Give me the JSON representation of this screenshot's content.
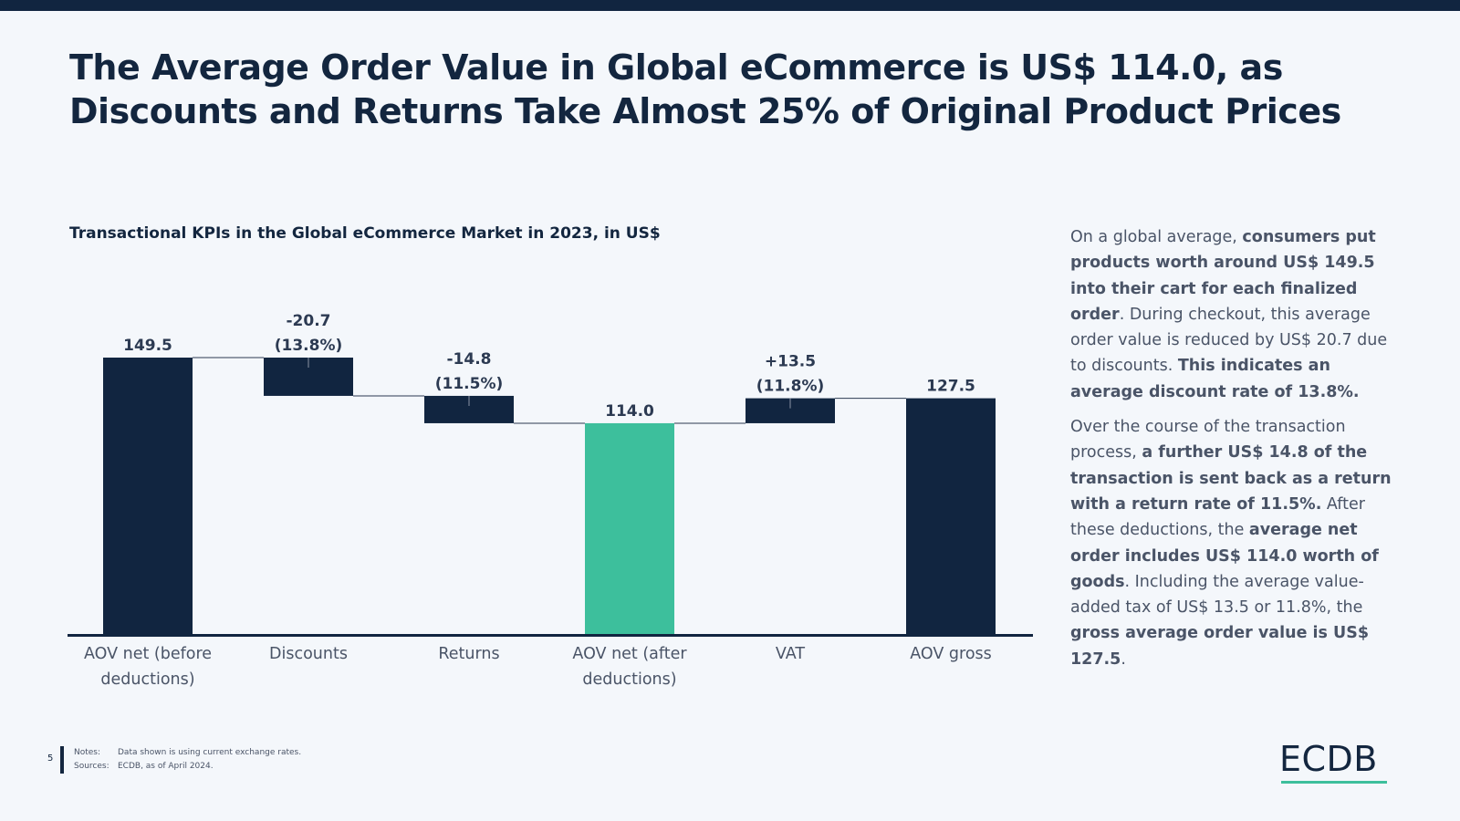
{
  "title": "The Average Order Value in Global eCommerce is US$ 114.0, as Discounts and Returns Take Almost 25% of Original Product Prices",
  "colors": {
    "dark": "#112540",
    "accent": "#3dbf9c"
  },
  "chart_data": {
    "type": "bar",
    "subtype": "waterfall",
    "title": "Transactional KPIs in the Global eCommerce Market in 2023, in US$",
    "categories": [
      [
        "AOV net (before",
        "deductions)"
      ],
      [
        "Discounts"
      ],
      [
        "Returns"
      ],
      [
        "AOV net (after",
        "deductions)"
      ],
      [
        "VAT"
      ],
      [
        "AOV gross"
      ]
    ],
    "steps": [
      {
        "kind": "total",
        "value": 149.5,
        "label": [
          "149.5"
        ]
      },
      {
        "kind": "delta",
        "value": -20.7,
        "label": [
          "-20.7",
          "(13.8%)"
        ]
      },
      {
        "kind": "delta",
        "value": -14.8,
        "label": [
          "-14.8",
          "(11.5%)"
        ]
      },
      {
        "kind": "total",
        "value": 114.0,
        "label": [
          "114.0"
        ],
        "highlight": true
      },
      {
        "kind": "delta",
        "value": 13.5,
        "label": [
          "+13.5",
          "(11.8%)"
        ]
      },
      {
        "kind": "total",
        "value": 127.5,
        "label": [
          "127.5"
        ]
      }
    ],
    "ylim": [
      0,
      149.5
    ],
    "grid": false,
    "legend": "none"
  },
  "description": {
    "p1": [
      {
        "t": "On a global average, ",
        "b": false
      },
      {
        "t": "consumers put products worth around US$ 149.5 into their cart for each finalized order",
        "b": true
      },
      {
        "t": ". During checkout, this average order value is reduced by US$ 20.7 due to discounts. ",
        "b": false
      },
      {
        "t": "This indicates an average discount rate of 13.8%.",
        "b": true
      }
    ],
    "p2": [
      {
        "t": "Over the course of the transaction process, ",
        "b": false
      },
      {
        "t": "a further US$ 14.8 of the transaction is sent back as a return with a return rate of 11.5%.",
        "b": true
      },
      {
        "t": " After these deductions, the ",
        "b": false
      },
      {
        "t": "average net order includes US$ 114.0 worth of goods",
        "b": true
      },
      {
        "t": ". Including the average value-added tax of US$ 13.5 or 11.8%, the ",
        "b": false
      },
      {
        "t": "gross average order value is US$ 127.5",
        "b": true
      },
      {
        "t": ".",
        "b": false
      }
    ]
  },
  "footer": {
    "page_number": "5",
    "notes_label": "Notes:",
    "notes_text": "Data shown is using current exchange rates.",
    "sources_label": "Sources:",
    "sources_text": "ECDB, as of April 2024."
  },
  "logo": "ECDB"
}
